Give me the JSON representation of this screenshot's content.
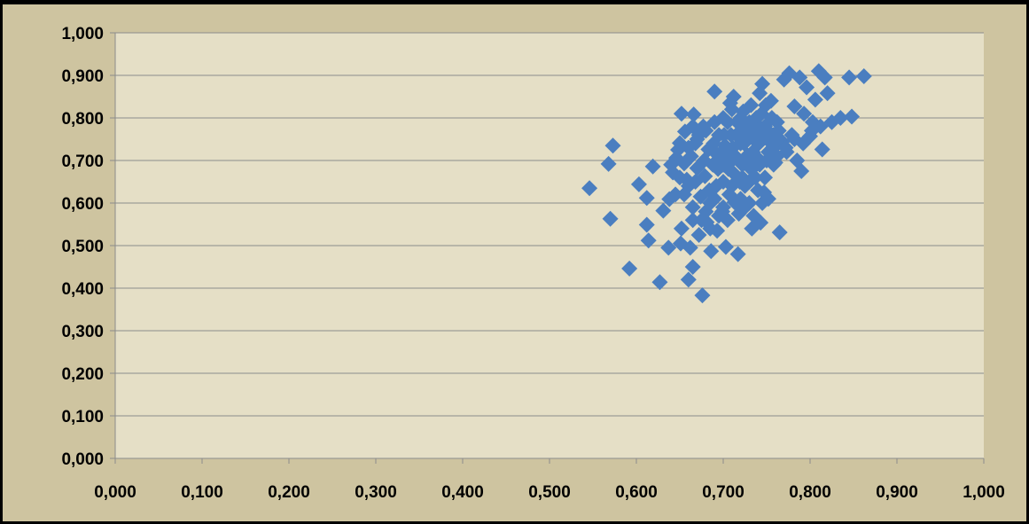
{
  "chart_data": {
    "type": "scatter",
    "title": "",
    "xlabel": "",
    "ylabel": "",
    "xlim": [
      0,
      1
    ],
    "ylim": [
      0,
      1
    ],
    "x_ticks": [
      "0,000",
      "0,100",
      "0,200",
      "0,300",
      "0,400",
      "0,500",
      "0,600",
      "0,700",
      "0,800",
      "0,900",
      "1,000"
    ],
    "y_ticks": [
      "0,000",
      "0,100",
      "0,200",
      "0,300",
      "0,400",
      "0,500",
      "0,600",
      "0,700",
      "0,800",
      "0,900",
      "1,000"
    ],
    "grid": "horizontal",
    "legend": "none",
    "colors": {
      "outer_background": "#cec4a0",
      "plot_background": "#e5dfc6",
      "gridline": "#8c8c8c",
      "marker": "#4a7ec0"
    },
    "series": [
      {
        "marker": "diamond",
        "points": [
          [
            0.546,
            0.635
          ],
          [
            0.568,
            0.692
          ],
          [
            0.573,
            0.735
          ],
          [
            0.57,
            0.563
          ],
          [
            0.592,
            0.446
          ],
          [
            0.603,
            0.644
          ],
          [
            0.612,
            0.612
          ],
          [
            0.612,
            0.549
          ],
          [
            0.614,
            0.512
          ],
          [
            0.619,
            0.686
          ],
          [
            0.627,
            0.414
          ],
          [
            0.631,
            0.582
          ],
          [
            0.638,
            0.609
          ],
          [
            0.637,
            0.495
          ],
          [
            0.642,
            0.672
          ],
          [
            0.646,
            0.706
          ],
          [
            0.648,
            0.725
          ],
          [
            0.65,
            0.741
          ],
          [
            0.652,
            0.81
          ],
          [
            0.651,
            0.505
          ],
          [
            0.652,
            0.54
          ],
          [
            0.655,
            0.693
          ],
          [
            0.656,
            0.768
          ],
          [
            0.658,
            0.655
          ],
          [
            0.66,
            0.42
          ],
          [
            0.662,
            0.495
          ],
          [
            0.663,
            0.71
          ],
          [
            0.665,
            0.45
          ],
          [
            0.665,
            0.56
          ],
          [
            0.666,
            0.808
          ],
          [
            0.668,
            0.74
          ],
          [
            0.67,
            0.682
          ],
          [
            0.672,
            0.525
          ],
          [
            0.674,
            0.615
          ],
          [
            0.676,
            0.383
          ],
          [
            0.677,
            0.78
          ],
          [
            0.679,
            0.663
          ],
          [
            0.681,
            0.555
          ],
          [
            0.683,
            0.726
          ],
          [
            0.685,
            0.6
          ],
          [
            0.686,
            0.487
          ],
          [
            0.688,
            0.69
          ],
          [
            0.69,
            0.862
          ],
          [
            0.692,
            0.64
          ],
          [
            0.693,
            0.535
          ],
          [
            0.695,
            0.76
          ],
          [
            0.697,
            0.708
          ],
          [
            0.699,
            0.58
          ],
          [
            0.7,
            0.65
          ],
          [
            0.702,
            0.735
          ],
          [
            0.703,
            0.497
          ],
          [
            0.705,
            0.79
          ],
          [
            0.707,
            0.62
          ],
          [
            0.708,
            0.835
          ],
          [
            0.71,
            0.7
          ],
          [
            0.712,
            0.85
          ],
          [
            0.713,
            0.602
          ],
          [
            0.715,
            0.76
          ],
          [
            0.717,
            0.48
          ],
          [
            0.718,
            0.575
          ],
          [
            0.72,
            0.74
          ],
          [
            0.722,
            0.69
          ],
          [
            0.723,
            0.815
          ],
          [
            0.725,
            0.64
          ],
          [
            0.727,
            0.77
          ],
          [
            0.728,
            0.712
          ],
          [
            0.73,
            0.6
          ],
          [
            0.732,
            0.83
          ],
          [
            0.733,
            0.54
          ],
          [
            0.735,
            0.75
          ],
          [
            0.737,
            0.66
          ],
          [
            0.738,
            0.8
          ],
          [
            0.74,
            0.705
          ],
          [
            0.742,
            0.858
          ],
          [
            0.743,
            0.554
          ],
          [
            0.745,
            0.88
          ],
          [
            0.747,
            0.625
          ],
          [
            0.748,
            0.78
          ],
          [
            0.75,
            0.7
          ],
          [
            0.752,
            0.61
          ],
          [
            0.755,
            0.84
          ],
          [
            0.757,
            0.73
          ],
          [
            0.76,
            0.695
          ],
          [
            0.762,
            0.79
          ],
          [
            0.765,
            0.531
          ],
          [
            0.768,
            0.744
          ],
          [
            0.77,
            0.89
          ],
          [
            0.773,
            0.72
          ],
          [
            0.776,
            0.905
          ],
          [
            0.779,
            0.76
          ],
          [
            0.782,
            0.827
          ],
          [
            0.785,
            0.7
          ],
          [
            0.788,
            0.895
          ],
          [
            0.79,
            0.675
          ],
          [
            0.793,
            0.81
          ],
          [
            0.796,
            0.872
          ],
          [
            0.8,
            0.757
          ],
          [
            0.803,
            0.79
          ],
          [
            0.806,
            0.843
          ],
          [
            0.81,
            0.91
          ],
          [
            0.812,
            0.78
          ],
          [
            0.814,
            0.726
          ],
          [
            0.817,
            0.895
          ],
          [
            0.82,
            0.858
          ],
          [
            0.825,
            0.79
          ],
          [
            0.835,
            0.8
          ],
          [
            0.845,
            0.895
          ],
          [
            0.848,
            0.803
          ],
          [
            0.862,
            0.898
          ],
          [
            0.64,
            0.69
          ],
          [
            0.655,
            0.62
          ],
          [
            0.66,
            0.73
          ],
          [
            0.668,
            0.65
          ],
          [
            0.672,
            0.76
          ],
          [
            0.678,
            0.7
          ],
          [
            0.684,
            0.63
          ],
          [
            0.689,
            0.74
          ],
          [
            0.694,
            0.68
          ],
          [
            0.698,
            0.72
          ],
          [
            0.701,
            0.76
          ],
          [
            0.704,
            0.7
          ],
          [
            0.706,
            0.68
          ],
          [
            0.709,
            0.76
          ],
          [
            0.711,
            0.73
          ],
          [
            0.714,
            0.71
          ],
          [
            0.716,
            0.79
          ],
          [
            0.719,
            0.65
          ],
          [
            0.721,
            0.77
          ],
          [
            0.724,
            0.74
          ],
          [
            0.726,
            0.7
          ],
          [
            0.729,
            0.78
          ],
          [
            0.731,
            0.76
          ],
          [
            0.734,
            0.72
          ],
          [
            0.736,
            0.79
          ],
          [
            0.739,
            0.77
          ],
          [
            0.741,
            0.74
          ],
          [
            0.744,
            0.81
          ],
          [
            0.746,
            0.76
          ],
          [
            0.749,
            0.83
          ],
          [
            0.751,
            0.77
          ],
          [
            0.753,
            0.745
          ],
          [
            0.756,
            0.8
          ],
          [
            0.758,
            0.76
          ],
          [
            0.761,
            0.735
          ],
          [
            0.764,
            0.77
          ],
          [
            0.68,
            0.58
          ],
          [
            0.69,
            0.61
          ],
          [
            0.7,
            0.59
          ],
          [
            0.71,
            0.64
          ],
          [
            0.72,
            0.61
          ],
          [
            0.73,
            0.65
          ],
          [
            0.74,
            0.63
          ],
          [
            0.705,
            0.56
          ],
          [
            0.695,
            0.57
          ],
          [
            0.685,
            0.54
          ],
          [
            0.675,
            0.56
          ],
          [
            0.665,
            0.59
          ],
          [
            0.66,
            0.64
          ],
          [
            0.65,
            0.66
          ],
          [
            0.645,
            0.62
          ],
          [
            0.7,
            0.8
          ],
          [
            0.71,
            0.82
          ],
          [
            0.72,
            0.8
          ],
          [
            0.73,
            0.79
          ],
          [
            0.69,
            0.79
          ],
          [
            0.68,
            0.77
          ],
          [
            0.67,
            0.75
          ],
          [
            0.665,
            0.78
          ],
          [
            0.69,
            0.72
          ],
          [
            0.7,
            0.69
          ],
          [
            0.712,
            0.67
          ],
          [
            0.722,
            0.66
          ],
          [
            0.732,
            0.68
          ],
          [
            0.742,
            0.69
          ],
          [
            0.752,
            0.72
          ],
          [
            0.762,
            0.71
          ],
          [
            0.772,
            0.73
          ],
          [
            0.782,
            0.75
          ],
          [
            0.792,
            0.74
          ],
          [
            0.802,
            0.77
          ],
          [
            0.745,
            0.6
          ],
          [
            0.735,
            0.57
          ],
          [
            0.725,
            0.59
          ],
          [
            0.715,
            0.6
          ],
          [
            0.758,
            0.69
          ],
          [
            0.748,
            0.66
          ],
          [
            0.738,
            0.69
          ],
          [
            0.728,
            0.69
          ],
          [
            0.718,
            0.7
          ],
          [
            0.708,
            0.72
          ]
        ]
      }
    ]
  }
}
